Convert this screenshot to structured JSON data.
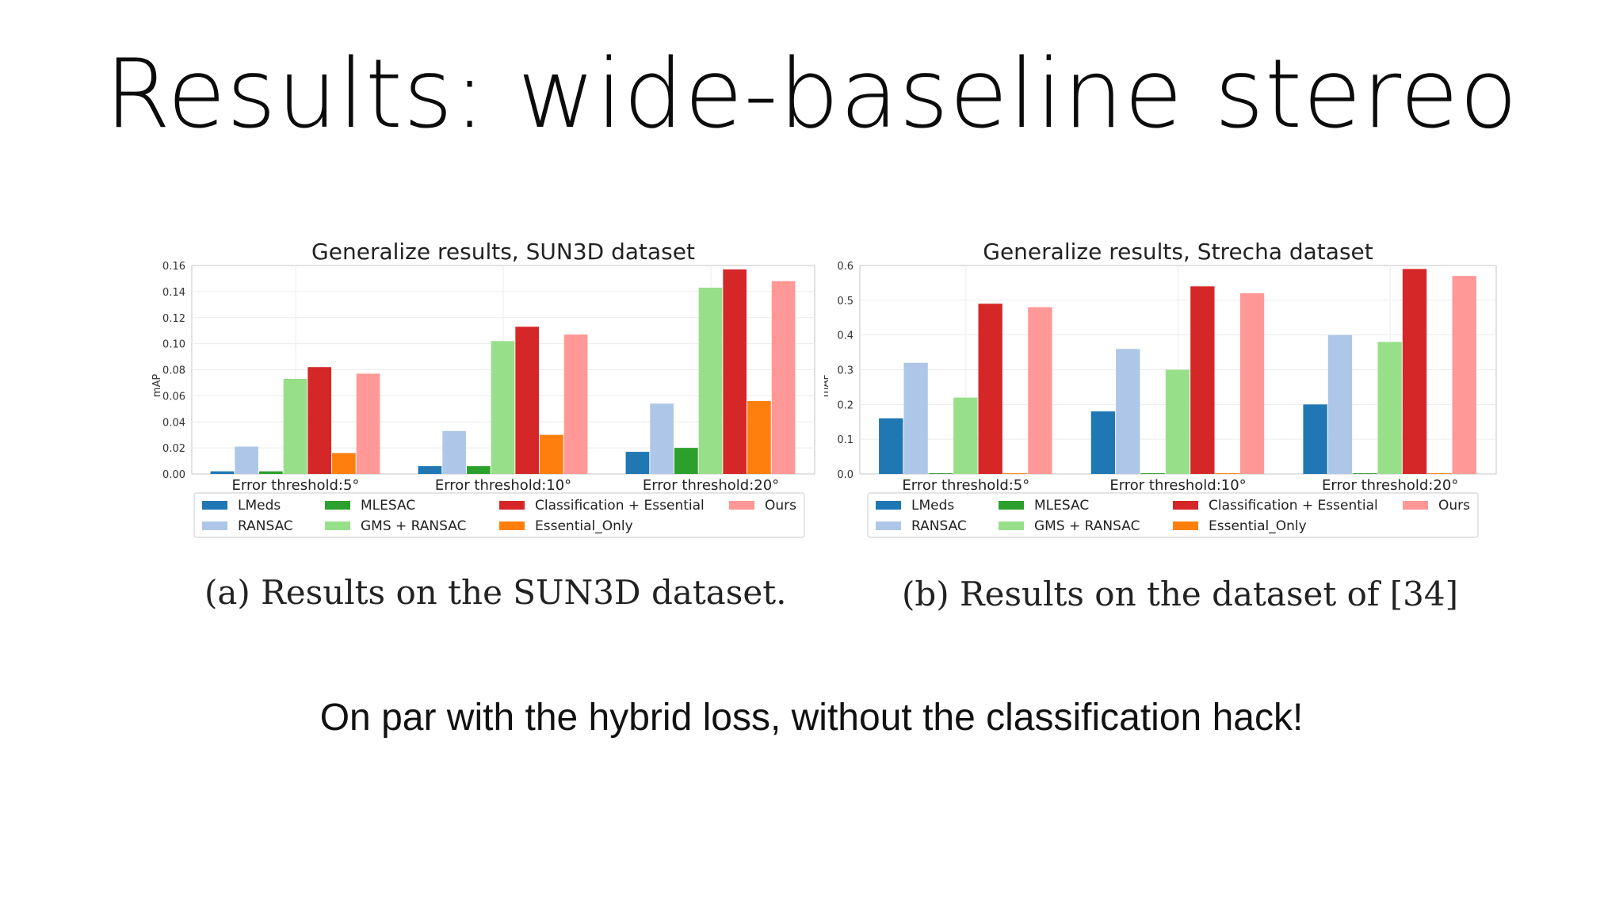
{
  "slide": {
    "title": "Results: wide-baseline stereo",
    "subtitle": "On par with the hybrid loss, without the classification hack!"
  },
  "captions": [
    "(a) Results on the SUN3D dataset.",
    "(b) Results on the dataset of [34]"
  ],
  "chart_data": [
    {
      "type": "bar",
      "title": "Generalize results, SUN3D dataset",
      "ylabel": "mAP",
      "ylim": [
        0,
        0.16
      ],
      "yticks": [
        "0.00",
        "0.02",
        "0.04",
        "0.06",
        "0.08",
        "0.10",
        "0.12",
        "0.14",
        "0.16"
      ],
      "grid": true,
      "categories": [
        "Error threshold:5°",
        "Error threshold:10°",
        "Error threshold:20°"
      ],
      "series": [
        {
          "name": "LMeds",
          "color": "#1f77b4",
          "values": [
            0.002,
            0.006,
            0.017
          ]
        },
        {
          "name": "RANSAC",
          "color": "#aec7e8",
          "values": [
            0.021,
            0.033,
            0.054
          ]
        },
        {
          "name": "MLESAC",
          "color": "#2ca02c",
          "values": [
            0.002,
            0.006,
            0.02
          ]
        },
        {
          "name": "GMS + RANSAC",
          "color": "#98df8a",
          "values": [
            0.073,
            0.102,
            0.143
          ]
        },
        {
          "name": "Classification + Essential",
          "color": "#d62728",
          "values": [
            0.082,
            0.113,
            0.157
          ]
        },
        {
          "name": "Essential_Only",
          "color": "#ff7f0e",
          "values": [
            0.016,
            0.03,
            0.056
          ]
        },
        {
          "name": "Ours",
          "color": "#ff9896",
          "values": [
            0.077,
            0.107,
            0.148
          ]
        }
      ],
      "legend": "bottom-center"
    },
    {
      "type": "bar",
      "title": "Generalize results, Strecha dataset",
      "ylabel": "mAP",
      "ylim": [
        0,
        0.6
      ],
      "yticks": [
        "0.0",
        "0.1",
        "0.2",
        "0.3",
        "0.4",
        "0.5",
        "0.6"
      ],
      "grid": true,
      "categories": [
        "Error threshold:5°",
        "Error threshold:10°",
        "Error threshold:20°"
      ],
      "series": [
        {
          "name": "LMeds",
          "color": "#1f77b4",
          "values": [
            0.16,
            0.18,
            0.2
          ]
        },
        {
          "name": "RANSAC",
          "color": "#aec7e8",
          "values": [
            0.32,
            0.36,
            0.4
          ]
        },
        {
          "name": "MLESAC",
          "color": "#2ca02c",
          "values": [
            0.002,
            0.002,
            0.002
          ]
        },
        {
          "name": "GMS + RANSAC",
          "color": "#98df8a",
          "values": [
            0.22,
            0.3,
            0.38
          ]
        },
        {
          "name": "Classification + Essential",
          "color": "#d62728",
          "values": [
            0.49,
            0.54,
            0.59
          ]
        },
        {
          "name": "Essential_Only",
          "color": "#ff7f0e",
          "values": [
            0.002,
            0.002,
            0.002
          ]
        },
        {
          "name": "Ours",
          "color": "#ff9896",
          "values": [
            0.48,
            0.52,
            0.57
          ]
        }
      ],
      "legend": "bottom-center"
    }
  ]
}
